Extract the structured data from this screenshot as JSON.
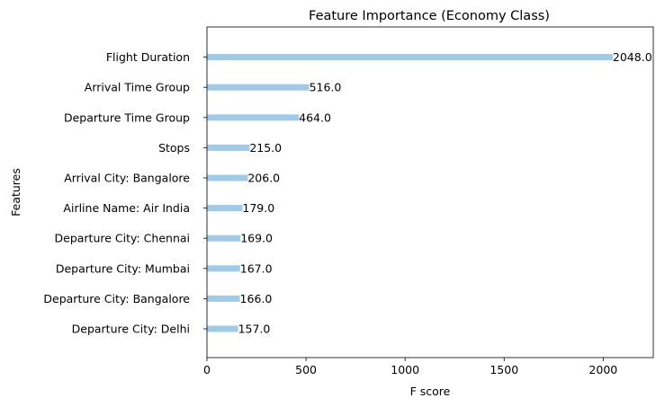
{
  "chart_data": {
    "type": "bar",
    "orientation": "horizontal",
    "title": "Feature Importance (Economy Class)",
    "xlabel": "F score",
    "ylabel": "Features",
    "categories": [
      "Departure City: Delhi",
      "Departure City: Bangalore",
      "Departure City: Mumbai",
      "Departure City: Chennai",
      "Airline Name: Air India",
      "Arrival City: Bangalore",
      "Stops",
      "Departure Time Group",
      "Arrival Time Group",
      "Flight Duration"
    ],
    "values": [
      157,
      166,
      167,
      169,
      179,
      206,
      215,
      464,
      516,
      2048
    ],
    "value_labels": [
      "157.0",
      "166.0",
      "167.0",
      "169.0",
      "179.0",
      "206.0",
      "215.0",
      "464.0",
      "516.0",
      "2048.0"
    ],
    "xticks": [
      0,
      500,
      1000,
      1500,
      2000
    ],
    "xtick_labels": [
      "0",
      "500",
      "1000",
      "1500",
      "2000"
    ],
    "xlim": [
      0,
      2252.8
    ],
    "grid": false,
    "bar_color": "#a1c9e8"
  }
}
